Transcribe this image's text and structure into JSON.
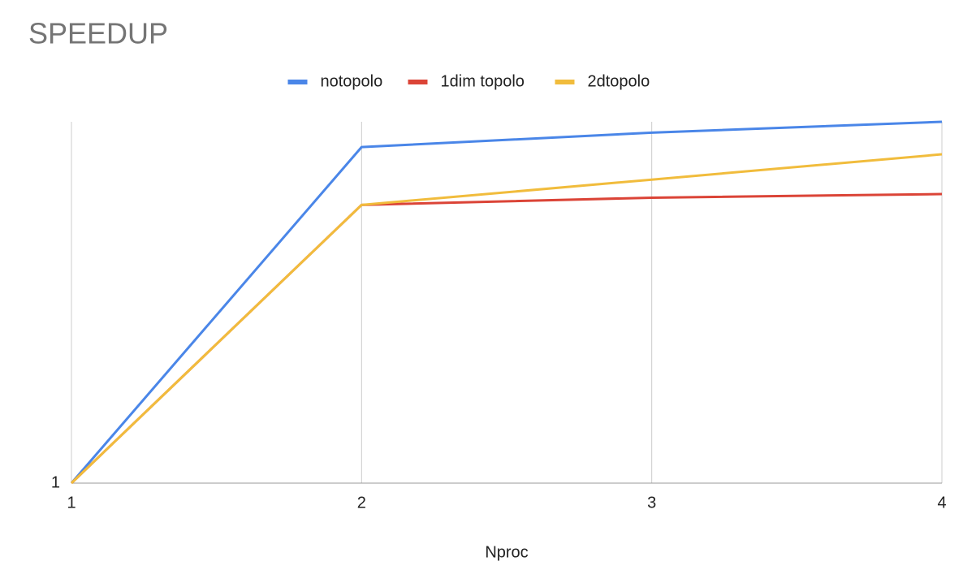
{
  "chart_data": {
    "type": "line",
    "title": "SPEEDUP",
    "x_label": "Nproc",
    "x": [
      1,
      2,
      3,
      4
    ],
    "series": [
      {
        "name": "notopolo",
        "color": "#4a86e8",
        "values": [
          1,
          1.93,
          1.97,
          2.0
        ]
      },
      {
        "name": "1dim topolo",
        "color": "#db4437",
        "values": [
          1,
          1.77,
          1.79,
          1.8
        ]
      },
      {
        "name": "2dtopolo",
        "color": "#f1bc3c",
        "values": [
          1,
          1.77,
          1.84,
          1.91
        ]
      }
    ],
    "xlim": [
      1,
      4
    ],
    "xticks": [
      1,
      2,
      3,
      4
    ],
    "ylim": [
      1,
      2
    ],
    "yticks": [
      1
    ],
    "grid": true,
    "legend": "top"
  }
}
